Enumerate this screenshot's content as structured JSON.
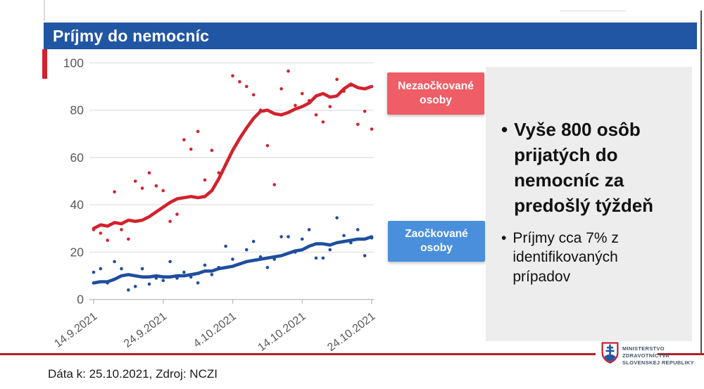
{
  "header": {
    "title": "Príjmy do nemocníc"
  },
  "legend": {
    "unvaccinated": "Nezaočkované osoby",
    "vaccinated": "Zaočkované osoby"
  },
  "panel": {
    "bullet_glyph": "•",
    "bullet1": "Vyše 800 osôb prijatých do nemocníc za predošlý týždeň",
    "bullet2": "Príjmy cca 7% z identifikovaných prípadov"
  },
  "footer": {
    "note": "Dáta k: 25.10.2021, Zdroj: NCZI"
  },
  "logo": {
    "line1": "MINISTERSTVO",
    "line2": "ZDRAVOTNÍCTVA",
    "line3": "SLOVENSKEJ REPUBLIKY"
  },
  "colors": {
    "header_bg": "#2156a5",
    "accent_red": "#d2222d",
    "legend_red_bg": "#ef5d66",
    "legend_blue_bg": "#4a8fdc",
    "panel_bg": "#ededed",
    "footer_line": "#b01e28",
    "line_red": "#d2222d",
    "line_blue": "#1f4e9e",
    "grid": "#d9d9d9",
    "axis": "#bfbfbf",
    "tick_text": "#595959"
  },
  "chart_data": {
    "type": "line",
    "title": "Príjmy do nemocníc",
    "xlabel": "",
    "ylabel": "",
    "ylim": [
      0,
      100
    ],
    "yticks": [
      0,
      20,
      40,
      60,
      80,
      100
    ],
    "grid": true,
    "x_start_date": "14.9.2021",
    "x_end_date": "24.10.2021",
    "x_tick_labels": [
      "14.9.2021",
      "24.9.2021",
      "4.10.2021",
      "14.10.2021",
      "24.10.2021"
    ],
    "x_tick_days": [
      0,
      10,
      20,
      30,
      40
    ],
    "series": [
      {
        "name": "Nezaočkované osoby",
        "type": "scatter",
        "color": "#d2222d",
        "values": [
          29.5,
          28,
          25,
          45.5,
          29.5,
          25.5,
          50,
          47,
          53.5,
          48,
          46,
          33,
          36,
          67.5,
          63.5,
          71,
          50.5,
          63,
          53.5,
          57,
          94.5,
          92,
          90,
          86.5,
          80,
          65,
          48.5,
          89,
          96.5,
          82,
          87,
          84,
          78,
          75,
          81.5,
          93,
          88,
          90.5,
          74,
          79.5,
          72
        ]
      },
      {
        "name": "Nezaočkované osoby",
        "type": "line",
        "color": "#d2222d",
        "values": [
          30,
          31.5,
          31,
          32.5,
          32,
          33.5,
          33,
          33.5,
          35,
          37,
          39,
          41,
          42.5,
          43,
          43.5,
          43,
          43.5,
          46,
          51,
          57,
          63,
          68,
          72.5,
          76.5,
          79.5,
          80,
          78.5,
          78,
          79,
          80.5,
          81.5,
          83,
          86,
          87,
          85.5,
          86,
          89,
          91,
          89.5,
          89,
          90
        ]
      },
      {
        "name": "Zaočkované osoby",
        "type": "scatter",
        "color": "#1f4e9e",
        "values": [
          11.5,
          13,
          7,
          16,
          13,
          4,
          5.5,
          13,
          6.5,
          9,
          8,
          16,
          9,
          11.5,
          9.5,
          7,
          14.5,
          10.5,
          13.5,
          22.5,
          17,
          15,
          21,
          24.5,
          18,
          13.5,
          17,
          26.5,
          26.5,
          20,
          25.5,
          29.5,
          17.5,
          17.5,
          21,
          34.5,
          27,
          24,
          29.5,
          18.5,
          26
        ]
      },
      {
        "name": "Zaočkované osoby",
        "type": "line",
        "color": "#1f4e9e",
        "values": [
          7,
          7.5,
          7.5,
          8.5,
          10,
          10.5,
          10,
          9.5,
          9.5,
          10,
          9.5,
          9.5,
          10,
          10,
          10.5,
          11,
          12,
          12,
          13,
          13.5,
          14,
          15,
          16,
          16.5,
          17,
          17.5,
          18,
          18.5,
          19.5,
          20.5,
          21,
          22.5,
          23.5,
          23.5,
          23,
          24,
          24.5,
          25,
          25.5,
          25.5,
          26.5
        ]
      }
    ]
  }
}
